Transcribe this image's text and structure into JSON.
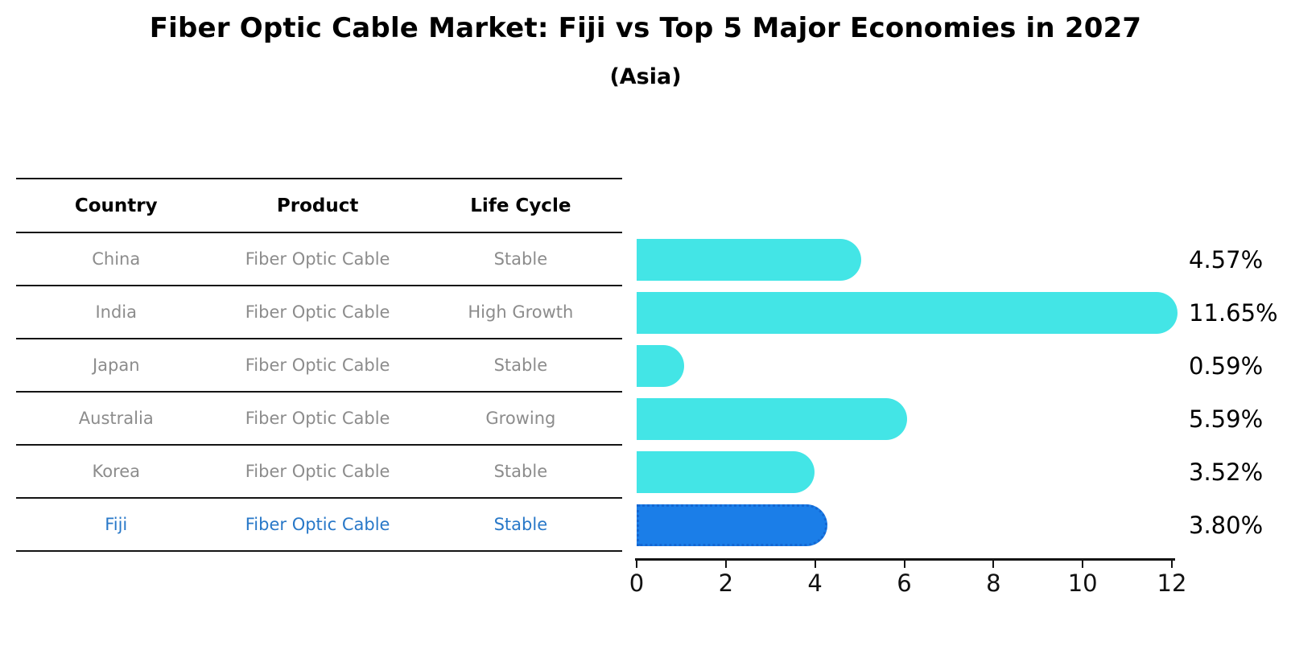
{
  "chart": {
    "title": "Fiber Optic Cable Market: Fiji vs Top 5 Major Economies in 2027",
    "subtitle": "(Asia)"
  },
  "table": {
    "headers": [
      "Country",
      "Product",
      "Life Cycle"
    ],
    "rows": [
      {
        "country": "China",
        "product": "Fiber Optic Cable",
        "life_cycle": "Stable",
        "highlight": false
      },
      {
        "country": "India",
        "product": "Fiber Optic Cable",
        "life_cycle": "High Growth",
        "highlight": false
      },
      {
        "country": "Japan",
        "product": "Fiber Optic Cable",
        "life_cycle": "Stable",
        "highlight": false
      },
      {
        "country": "Australia",
        "product": "Fiber Optic Cable",
        "life_cycle": "Growing",
        "highlight": false
      },
      {
        "country": "Korea",
        "product": "Fiber Optic Cable",
        "life_cycle": "Stable",
        "highlight": false
      },
      {
        "country": "Fiji",
        "product": "Fiber Optic Cable",
        "life_cycle": "Stable",
        "highlight": true
      }
    ]
  },
  "chart_data": {
    "type": "bar",
    "orientation": "horizontal",
    "title": "Fiber Optic Cable Market: Fiji vs Top 5 Major Economies in 2027",
    "subtitle": "(Asia)",
    "categories": [
      "China",
      "India",
      "Japan",
      "Australia",
      "Korea",
      "Fiji"
    ],
    "values": [
      4.57,
      11.65,
      0.59,
      5.59,
      3.52,
      3.8
    ],
    "value_labels": [
      "4.57%",
      "11.65%",
      "0.59%",
      "5.59%",
      "3.52%",
      "3.80%"
    ],
    "x_ticks": [
      0,
      2,
      4,
      6,
      8,
      10,
      12
    ],
    "xlim": [
      0,
      12
    ],
    "xlabel": "",
    "ylabel": "",
    "grid": false,
    "legend": false,
    "highlight_category": "Fiji",
    "bar_color": "#43e5e6",
    "highlight_bar_color": "#1b7ee8",
    "highlight_border_color": "#1467d2",
    "highlight_text_color": "#2878c8"
  }
}
